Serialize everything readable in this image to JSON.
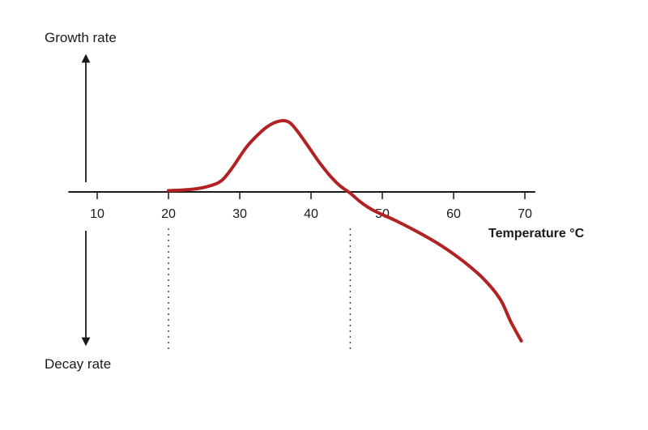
{
  "chart_data": {
    "type": "line",
    "title": "",
    "ylabel_top": "Growth rate",
    "ylabel_bottom": "Decay rate",
    "xlabel": "Temperature °C",
    "x_ticks": [
      10,
      20,
      30,
      40,
      50,
      60,
      70
    ],
    "x_tick_labels": [
      "10",
      "20",
      "30",
      "40",
      "50",
      "60",
      "70"
    ],
    "xlim": [
      8,
      71
    ],
    "grid": false,
    "legend": "none",
    "series": [
      {
        "color": "#b22222",
        "x": [
          20,
          22,
          24,
          26,
          27.5,
          29,
          31,
          33,
          34.5,
          36,
          37,
          38,
          39.5,
          41,
          42.5,
          44,
          45.5,
          47,
          48.5,
          50,
          52,
          55,
          58,
          61,
          64,
          66.5,
          68,
          69.5
        ],
        "y": [
          0.02,
          0.03,
          0.05,
          0.1,
          0.18,
          0.38,
          0.7,
          0.93,
          1.05,
          1.1,
          1.07,
          0.95,
          0.72,
          0.48,
          0.27,
          0.1,
          -0.02,
          -0.16,
          -0.27,
          -0.35,
          -0.45,
          -0.62,
          -0.81,
          -1.04,
          -1.32,
          -1.65,
          -2.0,
          -2.3
        ]
      }
    ],
    "dotted_markers_x": [
      20,
      45.5
    ]
  }
}
